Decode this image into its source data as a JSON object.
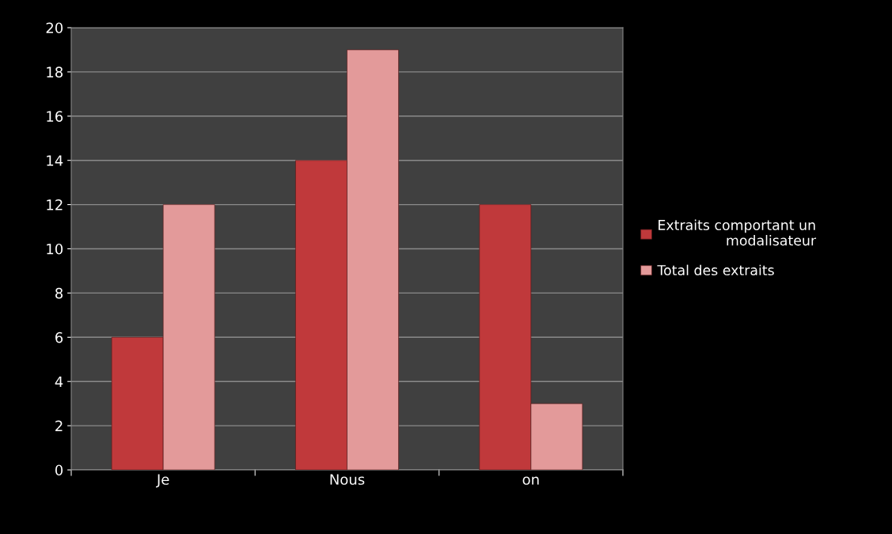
{
  "chart_data": {
    "type": "bar",
    "categories": [
      "Je",
      "Nous",
      "on"
    ],
    "series": [
      {
        "name": "Extraits comportant un modalisateur",
        "color": "#c0393b",
        "values": [
          6,
          14,
          12
        ]
      },
      {
        "name": "Total des extraits",
        "color": "#e39a9a",
        "values": [
          12,
          19,
          3
        ]
      }
    ],
    "ylim": [
      0,
      20
    ],
    "yticks": [
      0,
      2,
      4,
      6,
      8,
      10,
      12,
      14,
      16,
      18,
      20
    ],
    "grid": "y",
    "legend": "right"
  }
}
